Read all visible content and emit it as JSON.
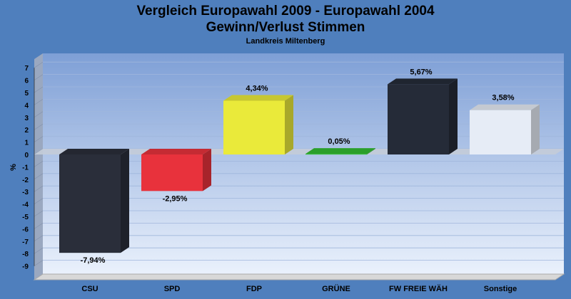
{
  "chart_data": {
    "type": "bar",
    "title_lines": [
      "Vergleich Europawahl 2009 - Europawahl 2004",
      "Gewinn/Verlust Stimmen"
    ],
    "subtitle": "Landkreis Miltenberg",
    "ylabel": "%",
    "xlabel": "",
    "ylim": [
      -9,
      7
    ],
    "yticks": [
      "7",
      "6",
      "5",
      "4",
      "3",
      "2",
      "1",
      "0",
      "-1",
      "-2",
      "-3",
      "-4",
      "-5",
      "-6",
      "-7",
      "-8",
      "-9"
    ],
    "grid": true,
    "categories": [
      "CSU",
      "SPD",
      "FDP",
      "GRÜNE",
      "FW FREIE WÄH",
      "Sonstige"
    ],
    "values": [
      -7.94,
      -2.95,
      4.34,
      0.05,
      5.67,
      3.58
    ],
    "value_labels": [
      "-7,94%",
      "-2,95%",
      "4,34%",
      "0,05%",
      "5,67%",
      "3,58%"
    ],
    "colors": [
      "#2a2e3a",
      "#e8323c",
      "#eaea3a",
      "#33bb33",
      "#252b38",
      "#e6ecf6"
    ]
  }
}
